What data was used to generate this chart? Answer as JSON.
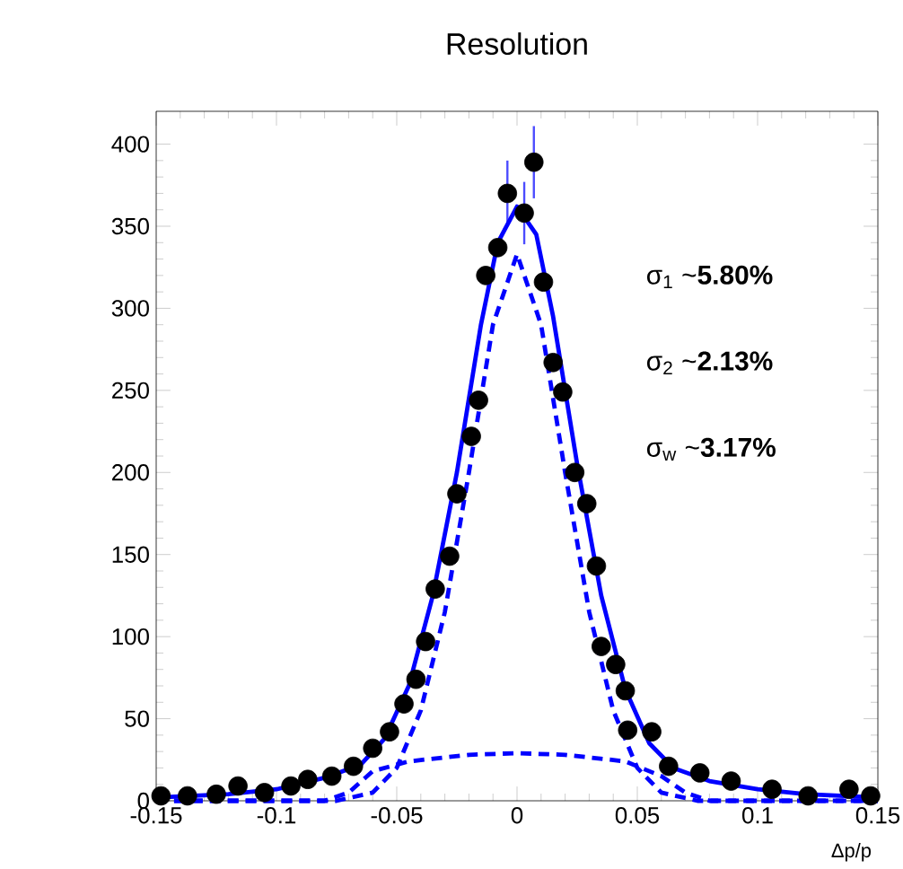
{
  "chart_data": {
    "type": "scatter",
    "marker": "circle",
    "title": "Resolution",
    "xlabel": "Δp/p",
    "xlim": [
      -0.15,
      0.15
    ],
    "ylim": [
      0,
      420
    ],
    "xticks": [
      -0.15,
      -0.1,
      -0.05,
      0,
      0.05,
      0.1,
      0.15
    ],
    "yticks": [
      0,
      50,
      100,
      150,
      200,
      250,
      300,
      350,
      400
    ],
    "annotations": [
      "σ$_{1}$ ~**5.80%**",
      "σ$_{2}$ ~**2.13%**",
      "σ$_{w}$ ~**3.17%**"
    ],
    "series": [
      {
        "color": "#000000",
        "x": [
          -0.148,
          -0.137,
          -0.125,
          -0.116,
          -0.105,
          -0.094,
          -0.087,
          -0.077,
          -0.068,
          -0.06,
          -0.053,
          -0.047,
          -0.042,
          -0.038,
          -0.034,
          -0.028,
          -0.025,
          -0.019,
          -0.016,
          -0.013,
          -0.008,
          -0.004,
          0.003,
          0.007,
          0.011,
          0.015,
          0.019,
          0.024,
          0.029,
          0.033,
          0.035,
          0.041,
          0.045,
          0.046,
          0.056,
          0.063,
          0.076,
          0.089,
          0.106,
          0.121,
          0.138,
          0.147
        ],
        "values": [
          3,
          3,
          4,
          9,
          5,
          9,
          13,
          15,
          21,
          32,
          42,
          59,
          74,
          97,
          129,
          149,
          187,
          222,
          244,
          320,
          337,
          370,
          358,
          389,
          316,
          267,
          249,
          200,
          181,
          143,
          94,
          83,
          67,
          43,
          42,
          21,
          17,
          12,
          7,
          3,
          7,
          3
        ],
        "errors": [
          null,
          null,
          null,
          null,
          null,
          null,
          null,
          null,
          null,
          null,
          null,
          null,
          null,
          null,
          null,
          null,
          null,
          null,
          null,
          null,
          null,
          20,
          19,
          22,
          null,
          null,
          null,
          null,
          null,
          null,
          null,
          null,
          null,
          null,
          null,
          null,
          null,
          null,
          null,
          null,
          null,
          null
        ]
      },
      {
        "type": "line",
        "color": "#0000ff",
        "line_style": "solid",
        "marker": "none",
        "x": [
          -0.15,
          -0.12,
          -0.1,
          -0.08,
          -0.065,
          -0.055,
          -0.045,
          -0.035,
          -0.025,
          -0.015,
          -0.008,
          0,
          0.008,
          0.015,
          0.025,
          0.035,
          0.045,
          0.055,
          0.065,
          0.08,
          0.1,
          0.12,
          0.15
        ],
        "values": [
          2,
          4,
          7,
          14,
          22,
          38,
          70,
          125,
          200,
          290,
          340,
          362,
          345,
          295,
          205,
          125,
          68,
          35,
          20,
          12,
          7,
          4,
          2
        ]
      },
      {
        "type": "line",
        "color": "#0000ff",
        "line_style": "dashed",
        "marker": "none",
        "x": [
          -0.15,
          -0.075,
          -0.06,
          -0.05,
          -0.04,
          -0.03,
          -0.02,
          -0.01,
          0,
          0.01,
          0.02,
          0.03,
          0.04,
          0.05,
          0.06,
          0.075,
          0.15
        ],
        "values": [
          0,
          0,
          5,
          20,
          55,
          115,
          200,
          290,
          333,
          290,
          200,
          115,
          55,
          20,
          5,
          0,
          0
        ]
      },
      {
        "type": "line",
        "color": "#0000ff",
        "line_style": "dashed",
        "marker": "none",
        "x": [
          -0.15,
          -0.08,
          -0.07,
          -0.06,
          -0.045,
          -0.02,
          0,
          0.02,
          0.045,
          0.06,
          0.07,
          0.08,
          0.15
        ],
        "values": [
          0,
          0,
          5,
          18,
          24,
          28,
          29,
          28,
          24,
          15,
          5,
          0,
          0
        ]
      }
    ]
  }
}
